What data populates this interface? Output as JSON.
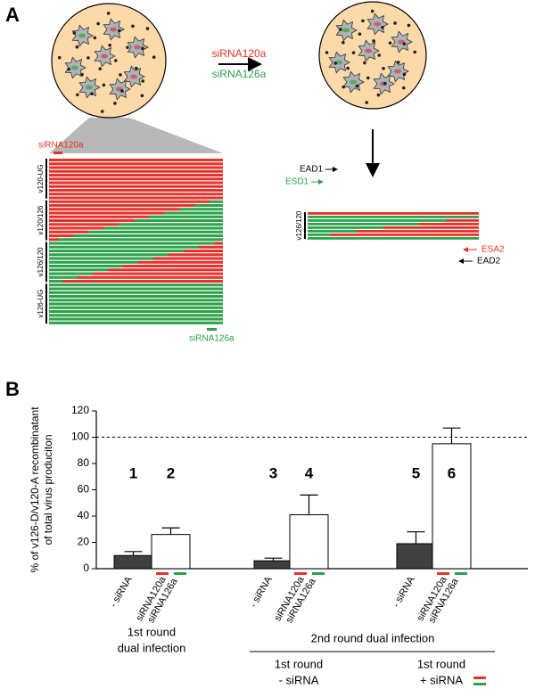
{
  "panel_a": {
    "label": "A",
    "arrow_labels": [
      "siRNA120a",
      "siRNA126a"
    ],
    "alignment_left": {
      "top_label": "siRNA120a",
      "groups": [
        "v120-UG",
        "v120/126",
        "v126/120",
        "v126-UG"
      ],
      "bottom_label": "siRNA126a"
    },
    "alignment_right": {
      "primers_top": [
        "EAD1",
        "ESD1"
      ],
      "group": "v126/120",
      "primers_bottom": [
        "ESA2",
        "EAD2"
      ]
    }
  },
  "panel_b_label": "B",
  "chart_data": {
    "type": "bar",
    "ylabel": [
      "% of v126-D/v120-A recombinatant",
      "of total virus produciton"
    ],
    "categories": [
      [
        "- siRNA"
      ],
      [
        "siRNA120a",
        "siRNA126a"
      ],
      [
        "- siRNA"
      ],
      [
        "siRNA120a",
        "siRNA126a"
      ],
      [
        "- siRNA"
      ],
      [
        "siRNA120a",
        "siRNA126a"
      ]
    ],
    "bar_labels": [
      "1",
      "2",
      "3",
      "4",
      "5",
      "6"
    ],
    "series": [
      {
        "values": [
          10,
          26,
          6,
          41,
          19,
          95
        ],
        "errors": [
          3,
          5,
          2,
          15,
          9,
          12
        ],
        "colors": [
          "#404040",
          "#ffffff",
          "#404040",
          "#ffffff",
          "#404040",
          "#ffffff"
        ]
      }
    ],
    "ylim": [
      0,
      120
    ],
    "yticks": [
      0,
      20,
      40,
      60,
      80,
      100,
      120
    ],
    "reference_line": 100,
    "group_labels": [
      [
        "1st round",
        "dual infection"
      ],
      [
        "2nd round dual infection"
      ],
      [
        "1st round",
        "- siRNA"
      ],
      [
        "1st round",
        "+ siRNA"
      ]
    ]
  }
}
